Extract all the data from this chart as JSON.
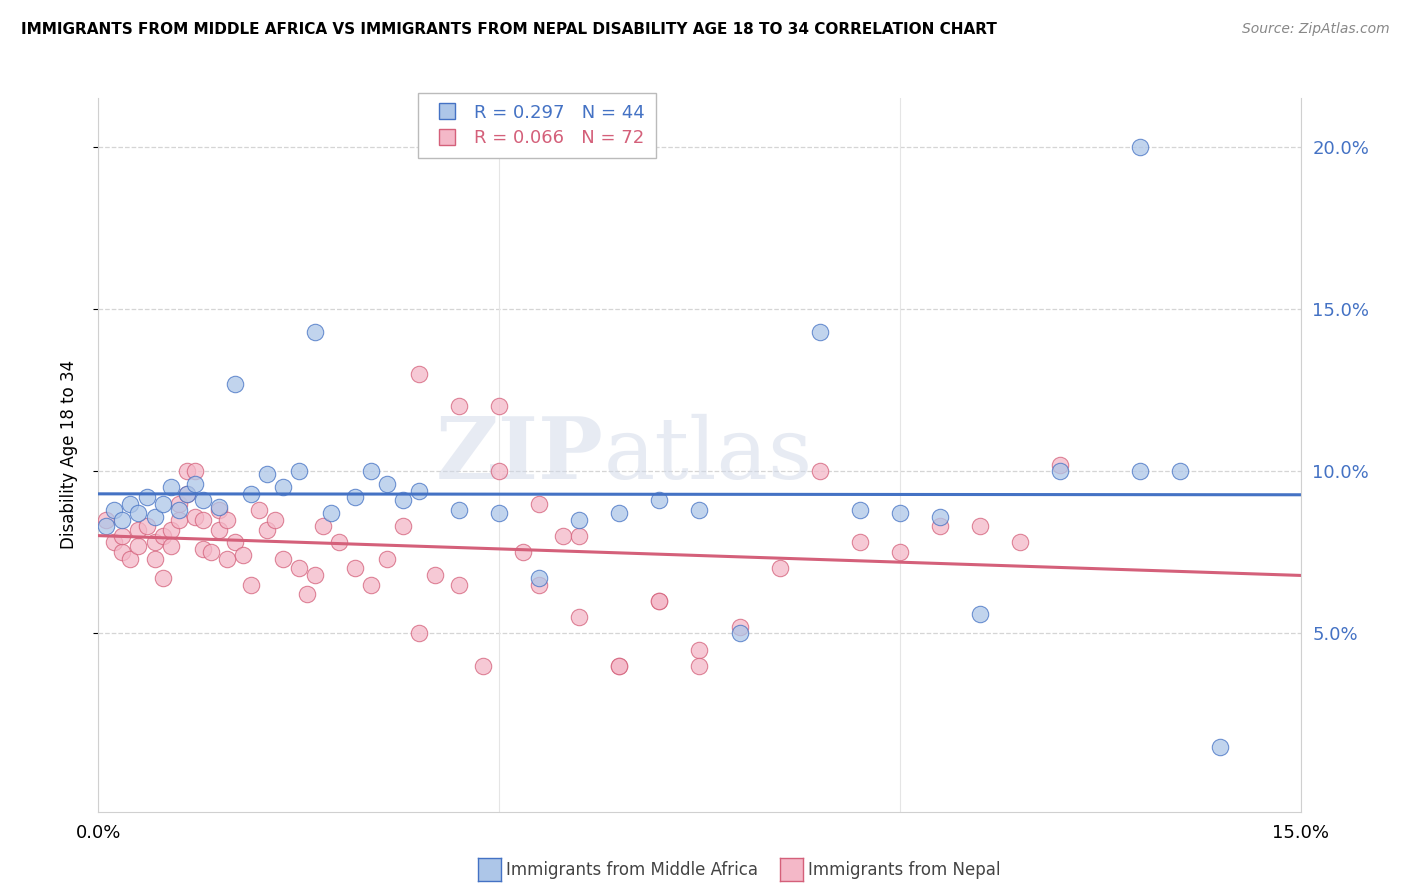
{
  "title": "IMMIGRANTS FROM MIDDLE AFRICA VS IMMIGRANTS FROM NEPAL DISABILITY AGE 18 TO 34 CORRELATION CHART",
  "source": "Source: ZipAtlas.com",
  "ylabel": "Disability Age 18 to 34",
  "watermark_zip": "ZIP",
  "watermark_atlas": "atlas",
  "blue_R": "R = 0.297",
  "blue_N": "N = 44",
  "pink_R": "R = 0.066",
  "pink_N": "N = 72",
  "xlim": [
    0.0,
    0.15
  ],
  "ylim": [
    -0.005,
    0.215
  ],
  "yticks": [
    0.05,
    0.1,
    0.15,
    0.2
  ],
  "ytick_labels_right": [
    "5.0%",
    "10.0%",
    "15.0%",
    "20.0%"
  ],
  "xticks": [
    0.0,
    0.05,
    0.1,
    0.15
  ],
  "xtick_labels": [
    "0.0%",
    "",
    "",
    "15.0%"
  ],
  "blue_fill": "#adc6e8",
  "blue_edge": "#4472c4",
  "pink_fill": "#f4b8c8",
  "pink_edge": "#d4607a",
  "legend_label_blue": "Immigrants from Middle Africa",
  "legend_label_pink": "Immigrants from Nepal",
  "blue_x": [
    0.001,
    0.002,
    0.003,
    0.004,
    0.005,
    0.006,
    0.007,
    0.008,
    0.009,
    0.01,
    0.011,
    0.012,
    0.013,
    0.015,
    0.017,
    0.019,
    0.021,
    0.023,
    0.025,
    0.027,
    0.029,
    0.032,
    0.034,
    0.036,
    0.038,
    0.04,
    0.045,
    0.05,
    0.055,
    0.06,
    0.065,
    0.07,
    0.075,
    0.08,
    0.09,
    0.095,
    0.1,
    0.105,
    0.11,
    0.12,
    0.13,
    0.135,
    0.14,
    0.13
  ],
  "blue_y": [
    0.083,
    0.088,
    0.085,
    0.09,
    0.087,
    0.092,
    0.086,
    0.09,
    0.095,
    0.088,
    0.093,
    0.096,
    0.091,
    0.089,
    0.127,
    0.093,
    0.099,
    0.095,
    0.1,
    0.143,
    0.087,
    0.092,
    0.1,
    0.096,
    0.091,
    0.094,
    0.088,
    0.087,
    0.067,
    0.085,
    0.087,
    0.091,
    0.088,
    0.05,
    0.143,
    0.088,
    0.087,
    0.086,
    0.056,
    0.1,
    0.1,
    0.1,
    0.015,
    0.2
  ],
  "pink_x": [
    0.001,
    0.002,
    0.003,
    0.003,
    0.004,
    0.005,
    0.005,
    0.006,
    0.007,
    0.007,
    0.008,
    0.008,
    0.009,
    0.009,
    0.01,
    0.01,
    0.011,
    0.011,
    0.012,
    0.012,
    0.013,
    0.013,
    0.014,
    0.015,
    0.015,
    0.016,
    0.016,
    0.017,
    0.018,
    0.019,
    0.02,
    0.021,
    0.022,
    0.023,
    0.025,
    0.026,
    0.027,
    0.028,
    0.03,
    0.032,
    0.034,
    0.036,
    0.038,
    0.04,
    0.042,
    0.045,
    0.048,
    0.05,
    0.053,
    0.055,
    0.058,
    0.06,
    0.065,
    0.07,
    0.075,
    0.08,
    0.085,
    0.09,
    0.095,
    0.1,
    0.105,
    0.11,
    0.115,
    0.12,
    0.04,
    0.045,
    0.05,
    0.055,
    0.06,
    0.065,
    0.07,
    0.075
  ],
  "pink_y": [
    0.085,
    0.078,
    0.075,
    0.08,
    0.073,
    0.077,
    0.082,
    0.083,
    0.078,
    0.073,
    0.067,
    0.08,
    0.077,
    0.082,
    0.09,
    0.085,
    0.1,
    0.093,
    0.1,
    0.086,
    0.076,
    0.085,
    0.075,
    0.082,
    0.088,
    0.085,
    0.073,
    0.078,
    0.074,
    0.065,
    0.088,
    0.082,
    0.085,
    0.073,
    0.07,
    0.062,
    0.068,
    0.083,
    0.078,
    0.07,
    0.065,
    0.073,
    0.083,
    0.05,
    0.068,
    0.065,
    0.04,
    0.12,
    0.075,
    0.065,
    0.08,
    0.055,
    0.04,
    0.06,
    0.045,
    0.052,
    0.07,
    0.1,
    0.078,
    0.075,
    0.083,
    0.083,
    0.078,
    0.102,
    0.13,
    0.12,
    0.1,
    0.09,
    0.08,
    0.04,
    0.06,
    0.04
  ]
}
